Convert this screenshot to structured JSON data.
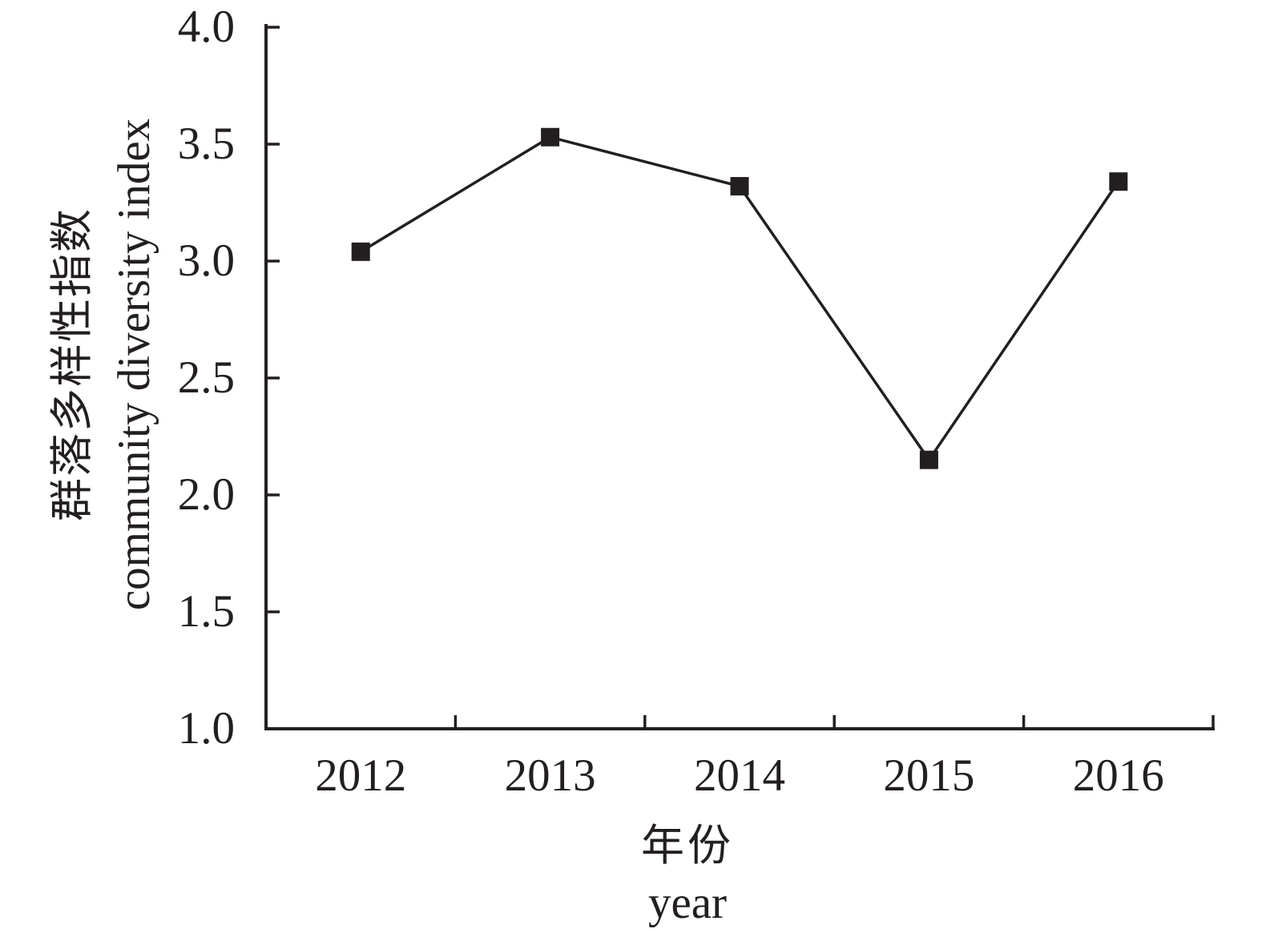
{
  "chart": {
    "background": "#ffffff",
    "ink_color": "#231f20"
  },
  "chart_data": {
    "type": "line",
    "title": "",
    "categories": [
      "2012",
      "2013",
      "2014",
      "2015",
      "2016"
    ],
    "series": [
      {
        "name": "community diversity index",
        "values": [
          3.04,
          3.53,
          3.32,
          2.15,
          3.34
        ]
      }
    ],
    "xlabel_zh": "年份",
    "xlabel_en": "year",
    "ylabel_zh": "群落多样性指数",
    "ylabel_en": "community diversity index",
    "ylim": [
      1.0,
      4.0
    ],
    "y_tick_step": 0.5,
    "y_tick_labels": [
      "4.0",
      "3.5",
      "3.0",
      "2.5",
      "2.0",
      "1.5",
      "1.0"
    ],
    "marker": "filled-square",
    "line_color": "#231f20",
    "marker_color": "#231f20",
    "grid": false,
    "legend": false
  }
}
